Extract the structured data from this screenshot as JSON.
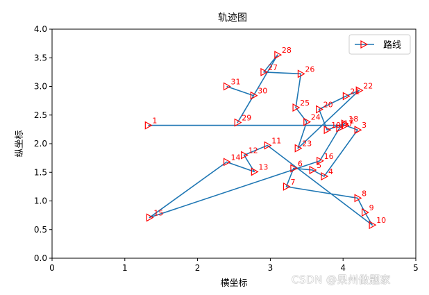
{
  "chart_data": {
    "type": "line",
    "title": "轨迹图",
    "xlabel": "横坐标",
    "ylabel": "纵坐标",
    "xlim": [
      0,
      5
    ],
    "ylim": [
      0,
      4.0
    ],
    "xticks": [
      "0",
      "1",
      "2",
      "3",
      "4",
      "5"
    ],
    "yticks": [
      "0.0",
      "0.5",
      "1.0",
      "1.5",
      "2.0",
      "2.5",
      "3.0",
      "3.5",
      "4.0"
    ],
    "legend": {
      "label": "路线",
      "placement": "top-right"
    },
    "grid": false,
    "line_color": "#1f77b4",
    "marker_color": "#ff0000",
    "marker": "triangle-right",
    "series": [
      {
        "name": "路线",
        "points": [
          {
            "label": "1",
            "x": 1.32,
            "y": 2.32
          },
          {
            "label": "2",
            "x": 4.03,
            "y": 2.32
          },
          {
            "label": "3",
            "x": 4.2,
            "y": 2.24
          },
          {
            "label": "4",
            "x": 3.74,
            "y": 1.43
          },
          {
            "label": "5",
            "x": 3.58,
            "y": 1.54
          },
          {
            "label": "6",
            "x": 3.32,
            "y": 1.57
          },
          {
            "label": "7",
            "x": 3.22,
            "y": 1.25
          },
          {
            "label": "8",
            "x": 4.2,
            "y": 1.05
          },
          {
            "label": "9",
            "x": 4.3,
            "y": 0.8
          },
          {
            "label": "10",
            "x": 4.4,
            "y": 0.58
          },
          {
            "label": "11",
            "x": 2.96,
            "y": 1.97
          },
          {
            "label": "12",
            "x": 2.64,
            "y": 1.8
          },
          {
            "label": "13",
            "x": 2.78,
            "y": 1.51
          },
          {
            "label": "14",
            "x": 2.4,
            "y": 1.68
          },
          {
            "label": "15",
            "x": 1.34,
            "y": 0.71
          },
          {
            "label": "16",
            "x": 3.68,
            "y": 1.7
          },
          {
            "label": "17",
            "x": 3.95,
            "y": 2.27
          },
          {
            "label": "18",
            "x": 4.02,
            "y": 2.35
          },
          {
            "label": "19",
            "x": 3.78,
            "y": 2.24
          },
          {
            "label": "20",
            "x": 3.67,
            "y": 2.6
          },
          {
            "label": "21",
            "x": 4.04,
            "y": 2.83
          },
          {
            "label": "22",
            "x": 4.22,
            "y": 2.93
          },
          {
            "label": "23",
            "x": 3.38,
            "y": 1.92
          },
          {
            "label": "24",
            "x": 3.5,
            "y": 2.38
          },
          {
            "label": "25",
            "x": 3.35,
            "y": 2.63
          },
          {
            "label": "26",
            "x": 3.42,
            "y": 3.22
          },
          {
            "label": "27",
            "x": 2.91,
            "y": 3.25
          },
          {
            "label": "28",
            "x": 3.1,
            "y": 3.55
          },
          {
            "label": "29",
            "x": 2.55,
            "y": 2.37
          },
          {
            "label": "30",
            "x": 2.77,
            "y": 2.84
          },
          {
            "label": "31",
            "x": 2.4,
            "y": 3.0
          }
        ],
        "path_order": [
          "1",
          "2",
          "3",
          "4",
          "5",
          "6",
          "7",
          "8",
          "9",
          "10",
          "11",
          "12",
          "13",
          "14",
          "15",
          "16",
          "17",
          "18",
          "19",
          "20",
          "21",
          "22",
          "23",
          "24",
          "25",
          "26",
          "27",
          "28",
          "29",
          "30",
          "31"
        ]
      }
    ]
  },
  "watermark": "CSDN @果州做题家"
}
